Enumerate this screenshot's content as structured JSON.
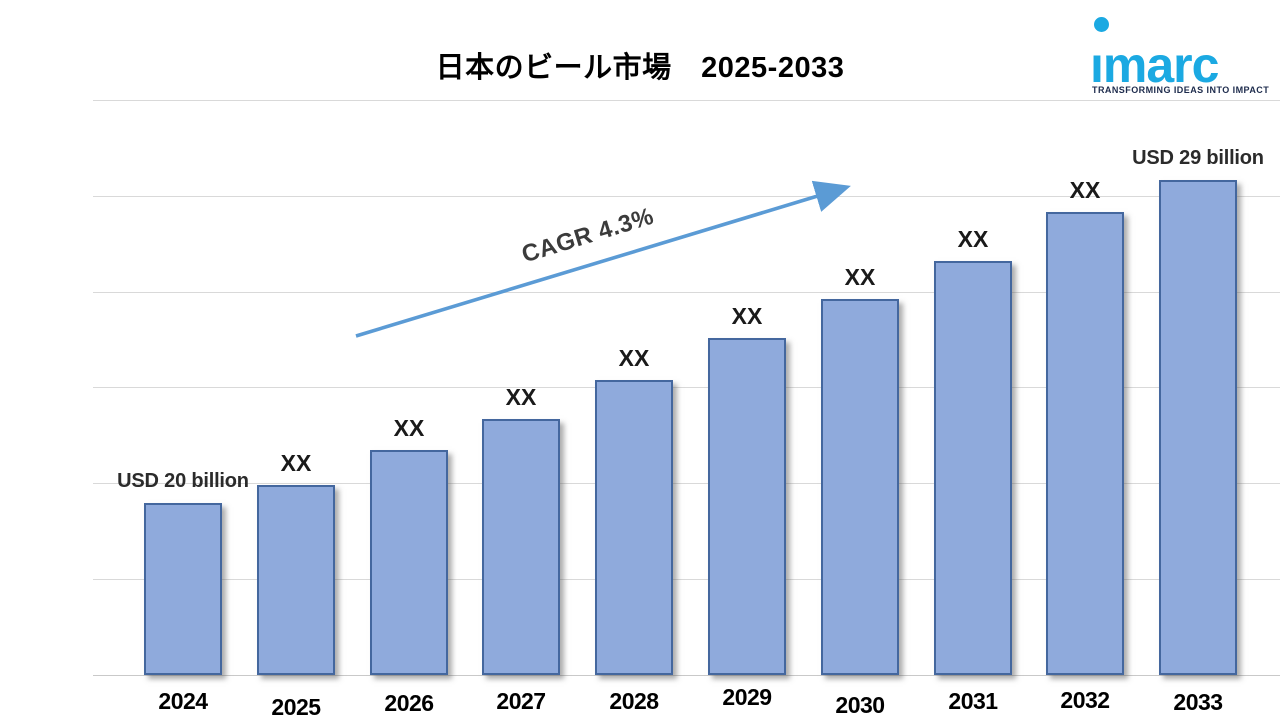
{
  "page": {
    "title": "日本のビール市場　2025-2033"
  },
  "logo": {
    "brand": "imarc",
    "tagline": "TRANSFORMING IDEAS INTO IMPACT",
    "brand_color": "#1BA9E2",
    "tagline_color": "#1D2B4C"
  },
  "annotation": {
    "cagr": "CAGR 4.3%"
  },
  "chart_data": {
    "type": "bar",
    "title": "日本のビール市場　2025-2033",
    "categories": [
      "2024",
      "2025",
      "2026",
      "2027",
      "2028",
      "2029",
      "2030",
      "2031",
      "2032",
      "2033"
    ],
    "values": [
      20,
      20.5,
      21.5,
      22.4,
      23.5,
      24.7,
      25.8,
      26.9,
      28.3,
      29.2
    ],
    "bar_labels": [
      "USD 20 billion",
      "XX",
      "XX",
      "XX",
      "XX",
      "XX",
      "XX",
      "XX",
      "XX",
      "USD 29 billion"
    ],
    "xlabel": "",
    "ylabel": "",
    "y_axis_tick_labels_visible": false,
    "gridlines": true,
    "legend": null,
    "annotations": [
      {
        "text": "CAGR 4.3%",
        "style": "rotated-text-with-trend-arrow"
      }
    ],
    "colors": {
      "bar_fill": "#8FAADC",
      "bar_border": "#44679E",
      "arrow": "#5B9BD5",
      "gridline": "#D9D9D9"
    }
  }
}
